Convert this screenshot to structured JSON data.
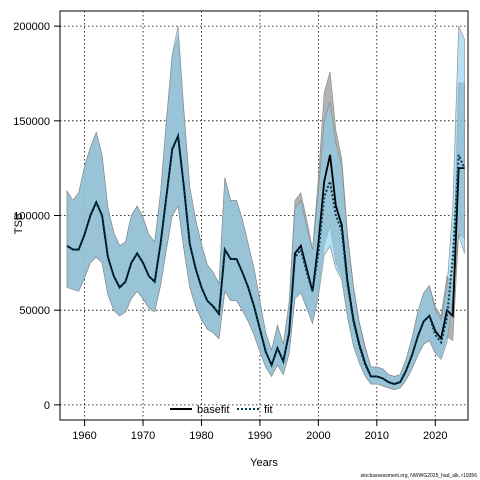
{
  "chart_data": {
    "type": "line",
    "title": "",
    "xlabel": "Years",
    "ylabel": "TSB",
    "xlim": [
      1955.8,
      2025.6
    ],
    "ylim": [
      -8000,
      208000
    ],
    "xticks": [
      1960,
      1970,
      1980,
      1990,
      2000,
      2010,
      2020
    ],
    "xtick_labels": [
      "1960",
      "1970",
      "1980",
      "1990",
      "2000",
      "2010",
      "2020"
    ],
    "yticks": [
      0,
      50000,
      100000,
      150000,
      200000
    ],
    "ytick_labels": [
      "0",
      "50000",
      "100000",
      "150000",
      "200000"
    ],
    "grid": true,
    "legend": {
      "placement": "bottom-center",
      "entries": [
        "basefit",
        "fit"
      ]
    },
    "x": [
      1957,
      1958,
      1959,
      1960,
      1961,
      1962,
      1963,
      1964,
      1965,
      1966,
      1967,
      1968,
      1969,
      1970,
      1971,
      1972,
      1973,
      1974,
      1975,
      1976,
      1977,
      1978,
      1979,
      1980,
      1981,
      1982,
      1983,
      1984,
      1985,
      1986,
      1987,
      1988,
      1989,
      1990,
      1991,
      1992,
      1993,
      1994,
      1995,
      1996,
      1997,
      1998,
      1999,
      2000,
      2001,
      2002,
      2003,
      2004,
      2005,
      2006,
      2007,
      2008,
      2009,
      2010,
      2011,
      2012,
      2013,
      2014,
      2015,
      2016,
      2017,
      2018,
      2019,
      2020,
      2021,
      2022,
      2023,
      2024,
      2025
    ],
    "series": [
      {
        "name": "basefit",
        "color": "#000000",
        "fill": "#a6a6a6",
        "values": [
          84000,
          82000,
          82000,
          90000,
          100000,
          107000,
          100000,
          78000,
          68000,
          62000,
          65000,
          75000,
          80000,
          75000,
          68000,
          65000,
          85000,
          110000,
          135000,
          142000,
          115000,
          85000,
          72000,
          62000,
          55000,
          52000,
          48000,
          82000,
          77000,
          77000,
          70000,
          62000,
          52000,
          40000,
          28000,
          21000,
          30000,
          23000,
          38000,
          80000,
          84000,
          72000,
          60000,
          85000,
          118000,
          132000,
          105000,
          95000,
          65000,
          45000,
          32000,
          22000,
          15000,
          15000,
          14000,
          12000,
          11000,
          12000,
          18000,
          26000,
          36000,
          44000,
          47000,
          39000,
          35000,
          50000,
          47000,
          125000,
          125000
        ],
        "lower": [
          62000,
          61000,
          60000,
          67000,
          75000,
          78000,
          75000,
          58000,
          50000,
          47000,
          49000,
          56000,
          60000,
          56000,
          51000,
          49000,
          63000,
          82000,
          100000,
          105000,
          82000,
          62000,
          52000,
          45000,
          40000,
          38000,
          35000,
          60000,
          55000,
          55000,
          50000,
          44000,
          37000,
          28000,
          20000,
          15000,
          21000,
          16000,
          27000,
          57000,
          60000,
          52000,
          43000,
          60000,
          84000,
          95000,
          75000,
          68000,
          47000,
          32000,
          23000,
          16000,
          11000,
          11000,
          10000,
          9000,
          8000,
          9000,
          13000,
          19000,
          26000,
          32000,
          34000,
          28000,
          25000,
          36000,
          34000,
          90000,
          88000
        ],
        "upper": [
          113000,
          108000,
          112000,
          126000,
          136000,
          144000,
          132000,
          104000,
          91000,
          84000,
          86000,
          100000,
          105000,
          99000,
          90000,
          86000,
          112000,
          150000,
          185000,
          195000,
          155000,
          115000,
          98000,
          85000,
          74000,
          70000,
          64000,
          120000,
          108000,
          108000,
          98000,
          85000,
          72000,
          55000,
          38000,
          29000,
          42000,
          32000,
          54000,
          108000,
          112000,
          98000,
          82000,
          120000,
          165000,
          176000,
          145000,
          130000,
          90000,
          63000,
          44000,
          31000,
          20000,
          20000,
          19000,
          16000,
          15000,
          16000,
          24000,
          35000,
          49000,
          59000,
          63000,
          52000,
          47000,
          68000,
          64000,
          170000,
          170000
        ]
      },
      {
        "name": "fit",
        "color": "#003b55",
        "fill": "#87cdec",
        "values": [
          84000,
          82000,
          82000,
          90000,
          100000,
          107000,
          100000,
          78000,
          68000,
          62000,
          65000,
          75000,
          80000,
          75000,
          68000,
          65000,
          85000,
          110000,
          135000,
          142000,
          115000,
          85000,
          72000,
          62000,
          55000,
          52000,
          48000,
          82000,
          77000,
          77000,
          70000,
          62000,
          52000,
          40000,
          28000,
          21000,
          30000,
          23000,
          38000,
          78000,
          82000,
          70000,
          60000,
          80000,
          110000,
          118000,
          100000,
          92000,
          63000,
          44000,
          31000,
          21000,
          15000,
          15000,
          14000,
          12000,
          11000,
          12000,
          18000,
          26000,
          36000,
          44000,
          47000,
          37000,
          33000,
          46000,
          78000,
          132000,
          125000
        ],
        "lower": [
          62000,
          61000,
          60000,
          67000,
          75000,
          78000,
          75000,
          58000,
          50000,
          47000,
          49000,
          56000,
          60000,
          56000,
          51000,
          49000,
          63000,
          82000,
          100000,
          105000,
          82000,
          62000,
          52000,
          45000,
          40000,
          38000,
          35000,
          60000,
          55000,
          55000,
          50000,
          44000,
          37000,
          28000,
          20000,
          15000,
          21000,
          16000,
          27000,
          56000,
          59000,
          51000,
          43000,
          57000,
          79000,
          84000,
          72000,
          66000,
          46000,
          31000,
          22000,
          15000,
          11000,
          11000,
          10000,
          9000,
          8000,
          9000,
          13000,
          19000,
          26000,
          32000,
          34000,
          27000,
          24000,
          33000,
          56000,
          90000,
          80000
        ],
        "upper": [
          113000,
          108000,
          112000,
          126000,
          136000,
          144000,
          132000,
          104000,
          91000,
          84000,
          86000,
          100000,
          105000,
          99000,
          90000,
          86000,
          112000,
          150000,
          185000,
          200000,
          155000,
          115000,
          98000,
          85000,
          74000,
          70000,
          64000,
          120000,
          108000,
          108000,
          98000,
          85000,
          72000,
          55000,
          38000,
          29000,
          42000,
          32000,
          54000,
          104000,
          108000,
          94000,
          82000,
          112000,
          150000,
          160000,
          138000,
          126000,
          88000,
          62000,
          43000,
          30000,
          20000,
          20000,
          19000,
          16000,
          15000,
          16000,
          24000,
          35000,
          49000,
          59000,
          63000,
          50000,
          45000,
          62000,
          105000,
          200000,
          193000
        ]
      }
    ],
    "annotation": "stockassessment.org, NWWG2025_had_alk, r19356"
  }
}
